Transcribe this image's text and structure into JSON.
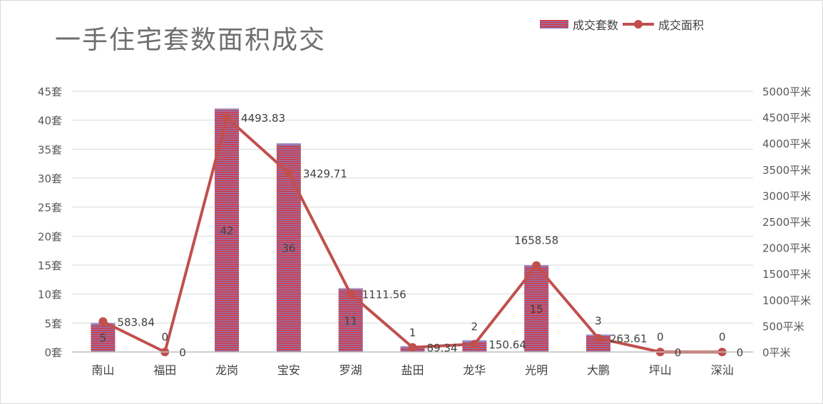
{
  "chart_data": {
    "type": "bar",
    "title": "一手住宅套数面积成交",
    "categories": [
      "南山",
      "福田",
      "龙岗",
      "宝安",
      "罗湖",
      "盐田",
      "龙华",
      "光明",
      "大鹏",
      "坪山",
      "深汕"
    ],
    "series": [
      {
        "name": "成交套数",
        "type": "bar",
        "axis": "left",
        "color": "#e03232",
        "values": [
          5,
          0,
          42,
          36,
          11,
          1,
          2,
          15,
          3,
          0,
          0
        ]
      },
      {
        "name": "成交面积",
        "type": "line",
        "axis": "right",
        "color": "#c0504d",
        "values": [
          583.84,
          0,
          4493.83,
          3429.71,
          1111.56,
          89.34,
          150.64,
          1658.58,
          263.61,
          0,
          0
        ]
      }
    ],
    "left_axis": {
      "ylim": [
        0,
        45
      ],
      "ticks": [
        "0套",
        "5套",
        "10套",
        "15套",
        "20套",
        "25套",
        "30套",
        "35套",
        "40套",
        "45套"
      ]
    },
    "right_axis": {
      "ylim": [
        0,
        5000
      ],
      "ticks": [
        "0平米",
        "500平米",
        "1000平米",
        "1500平米",
        "2000平米",
        "2500平米",
        "3000平米",
        "3500平米",
        "4000平米",
        "4500平米",
        "5000平米"
      ]
    },
    "bar_labels": [
      "5",
      "0",
      "42",
      "36",
      "11",
      "1",
      "2",
      "15",
      "3",
      "0",
      "0"
    ],
    "line_labels": [
      "583.84",
      "0",
      "4493.83",
      "3429.71",
      "1111.56",
      "89.34",
      "150.64",
      "1658.58",
      "263.61",
      "0",
      "0"
    ],
    "grid": true,
    "legend_position": "top-right"
  }
}
